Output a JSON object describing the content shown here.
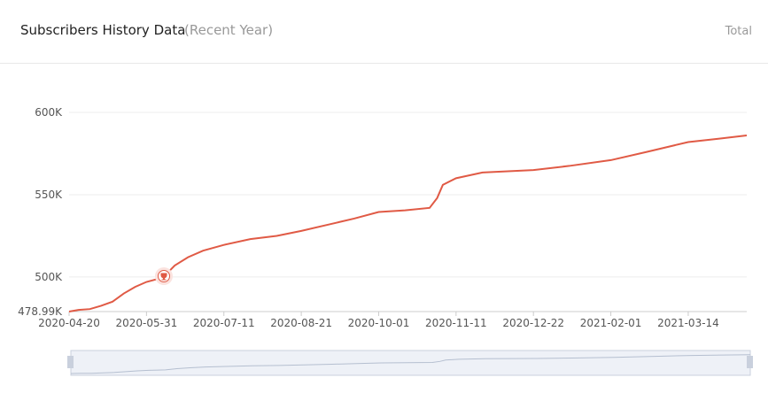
{
  "header": {
    "title": "Subscribers History Data",
    "subtitle": "(Recent Year)",
    "action": "Total"
  },
  "chart_data": {
    "type": "line",
    "x": [
      "2020-04-20",
      "2020-04-25",
      "2020-05-01",
      "2020-05-07",
      "2020-05-13",
      "2020-05-19",
      "2020-05-25",
      "2020-05-31",
      "2020-06-05",
      "2020-06-09",
      "2020-06-15",
      "2020-06-22",
      "2020-06-30",
      "2020-07-11",
      "2020-07-25",
      "2020-08-08",
      "2020-08-21",
      "2020-09-05",
      "2020-09-18",
      "2020-10-01",
      "2020-10-15",
      "2020-10-28",
      "2020-11-01",
      "2020-11-04",
      "2020-11-11",
      "2020-11-25",
      "2020-12-22",
      "2021-01-10",
      "2021-02-01",
      "2021-02-20",
      "2021-03-14",
      "2021-03-30",
      "2021-04-14"
    ],
    "series": [
      {
        "name": "Subscribers",
        "color": "#e05a45",
        "values": [
          479000,
          480000,
          480500,
          482500,
          485000,
          490000,
          494000,
          497000,
          498500,
          500000,
          507000,
          512000,
          516000,
          519500,
          523000,
          525000,
          528000,
          532000,
          535500,
          539500,
          540500,
          542000,
          548000,
          556000,
          560000,
          563500,
          565000,
          567500,
          571000,
          576000,
          582000,
          584000,
          586000
        ]
      }
    ],
    "xlim": [
      "2020-04-20",
      "2021-04-14"
    ],
    "xticks": [
      "2020-04-20",
      "2020-05-31",
      "2020-07-11",
      "2020-08-21",
      "2020-10-01",
      "2020-11-11",
      "2020-12-22",
      "2021-02-01",
      "2021-03-14"
    ],
    "ylim": [
      478990,
      600000
    ],
    "yticks": [
      {
        "value": 478990,
        "label": "478.99K"
      },
      {
        "value": 500000,
        "label": "500K"
      },
      {
        "value": 550000,
        "label": "550K"
      },
      {
        "value": 600000,
        "label": "600K"
      }
    ],
    "grid": true
  }
}
